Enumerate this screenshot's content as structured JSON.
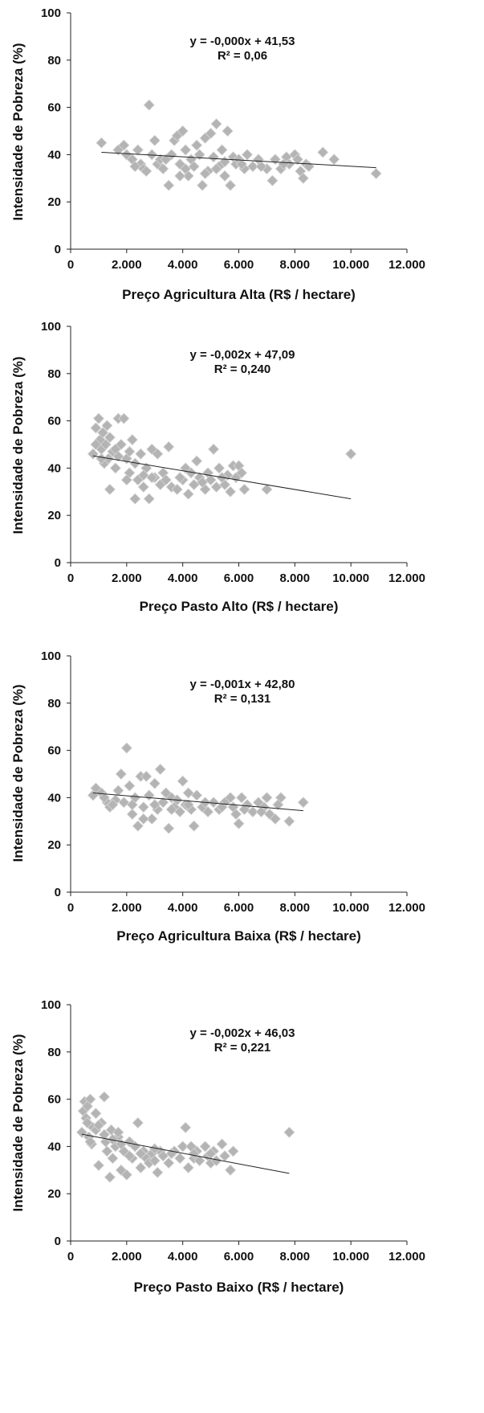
{
  "chart_data": [
    {
      "type": "scatter",
      "title": "",
      "xlabel": "Preço Agricultura Alta (R$ / hectare)",
      "ylabel": "Intensidade de Pobreza (%)",
      "xlim": [
        0,
        12000
      ],
      "ylim": [
        0,
        100
      ],
      "xticks": [
        0,
        2000,
        4000,
        6000,
        8000,
        10000,
        12000
      ],
      "xtick_labels": [
        "0",
        "2.000",
        "4.000",
        "6.000",
        "8.000",
        "10.000",
        "12.000"
      ],
      "yticks": [
        0,
        20,
        40,
        60,
        80,
        100
      ],
      "ytick_labels": [
        "0",
        "20",
        "40",
        "60",
        "80",
        "100"
      ],
      "equation": "y = -0,000x + 41,53",
      "r2": "R² = 0,06",
      "trendline": {
        "x": [
          1100,
          10900
        ],
        "y": [
          41.0,
          34.5
        ]
      },
      "marker_color": "#b4b4b4",
      "points": [
        [
          1100,
          45
        ],
        [
          1700,
          42
        ],
        [
          1900,
          44
        ],
        [
          2000,
          40
        ],
        [
          2200,
          38
        ],
        [
          2400,
          42
        ],
        [
          2500,
          36
        ],
        [
          2600,
          34
        ],
        [
          2800,
          61
        ],
        [
          2900,
          40
        ],
        [
          3000,
          46
        ],
        [
          3100,
          36
        ],
        [
          3200,
          38
        ],
        [
          3300,
          34
        ],
        [
          3500,
          27
        ],
        [
          3600,
          40
        ],
        [
          3700,
          46
        ],
        [
          3800,
          48
        ],
        [
          3900,
          36
        ],
        [
          4000,
          50
        ],
        [
          4100,
          42
        ],
        [
          4200,
          31
        ],
        [
          4300,
          38
        ],
        [
          4400,
          35
        ],
        [
          4500,
          44
        ],
        [
          4600,
          40
        ],
        [
          4700,
          27
        ],
        [
          4800,
          47
        ],
        [
          4900,
          33
        ],
        [
          5000,
          49
        ],
        [
          5100,
          39
        ],
        [
          5200,
          53
        ],
        [
          5300,
          35
        ],
        [
          5400,
          42
        ],
        [
          5500,
          37
        ],
        [
          5600,
          50
        ],
        [
          5700,
          27
        ],
        [
          5800,
          39
        ],
        [
          5900,
          36
        ],
        [
          6000,
          38
        ],
        [
          6200,
          34
        ],
        [
          6300,
          40
        ],
        [
          6500,
          35
        ],
        [
          6700,
          38
        ],
        [
          7000,
          34
        ],
        [
          7200,
          29
        ],
        [
          7300,
          38
        ],
        [
          7500,
          34
        ],
        [
          7700,
          39
        ],
        [
          7800,
          36
        ],
        [
          8000,
          40
        ],
        [
          8200,
          33
        ],
        [
          8300,
          30
        ],
        [
          8400,
          36
        ],
        [
          8500,
          35
        ],
        [
          9000,
          41
        ],
        [
          9400,
          38
        ],
        [
          10900,
          32
        ],
        [
          2300,
          35
        ],
        [
          2700,
          33
        ],
        [
          3400,
          38
        ],
        [
          4100,
          34
        ],
        [
          4800,
          32
        ],
        [
          5200,
          34
        ],
        [
          6100,
          36
        ],
        [
          6800,
          35
        ],
        [
          7600,
          36
        ],
        [
          8100,
          38
        ],
        [
          3900,
          31
        ],
        [
          5500,
          31
        ]
      ]
    },
    {
      "type": "scatter",
      "title": "",
      "xlabel": "Preço Pasto Alto (R$ / hectare)",
      "ylabel": "Intensidade de Pobreza (%)",
      "xlim": [
        0,
        12000
      ],
      "ylim": [
        0,
        100
      ],
      "xticks": [
        0,
        2000,
        4000,
        6000,
        8000,
        10000,
        12000
      ],
      "xtick_labels": [
        "0",
        "2.000",
        "4.000",
        "6.000",
        "8.000",
        "10.000",
        "12.000"
      ],
      "yticks": [
        0,
        20,
        40,
        60,
        80,
        100
      ],
      "ytick_labels": [
        "0",
        "20",
        "40",
        "60",
        "80",
        "100"
      ],
      "equation": "y = -0,002x + 47,09",
      "r2": "R² = 0,240",
      "trendline": {
        "x": [
          800,
          10000
        ],
        "y": [
          45.2,
          27.0
        ]
      },
      "marker_color": "#b4b4b4",
      "points": [
        [
          800,
          46
        ],
        [
          900,
          57
        ],
        [
          1000,
          61
        ],
        [
          1050,
          52
        ],
        [
          1100,
          48
        ],
        [
          1150,
          55
        ],
        [
          1200,
          42
        ],
        [
          1250,
          50
        ],
        [
          1300,
          58
        ],
        [
          1350,
          44
        ],
        [
          1400,
          31
        ],
        [
          1500,
          47
        ],
        [
          1600,
          40
        ],
        [
          1700,
          61
        ],
        [
          1800,
          50
        ],
        [
          1900,
          61
        ],
        [
          2000,
          44
        ],
        [
          2100,
          38
        ],
        [
          2200,
          52
        ],
        [
          2300,
          27
        ],
        [
          2400,
          35
        ],
        [
          2500,
          46
        ],
        [
          2600,
          32
        ],
        [
          2700,
          40
        ],
        [
          2800,
          27
        ],
        [
          2900,
          48
        ],
        [
          3000,
          36
        ],
        [
          3100,
          46
        ],
        [
          3200,
          33
        ],
        [
          3300,
          38
        ],
        [
          3500,
          49
        ],
        [
          3600,
          32
        ],
        [
          3800,
          31
        ],
        [
          4000,
          35
        ],
        [
          4100,
          40
        ],
        [
          4200,
          29
        ],
        [
          4300,
          38
        ],
        [
          4400,
          33
        ],
        [
          4500,
          43
        ],
        [
          4600,
          36
        ],
        [
          4800,
          31
        ],
        [
          4900,
          38
        ],
        [
          5000,
          35
        ],
        [
          5100,
          48
        ],
        [
          5200,
          32
        ],
        [
          5300,
          40
        ],
        [
          5500,
          33
        ],
        [
          5600,
          37
        ],
        [
          5700,
          30
        ],
        [
          5800,
          41
        ],
        [
          5900,
          36
        ],
        [
          6000,
          41
        ],
        [
          6100,
          38
        ],
        [
          6200,
          31
        ],
        [
          7000,
          31
        ],
        [
          10000,
          46
        ],
        [
          1100,
          44
        ],
        [
          1400,
          53
        ],
        [
          1700,
          45
        ],
        [
          2000,
          35
        ],
        [
          2300,
          42
        ],
        [
          2600,
          37
        ],
        [
          2900,
          36
        ],
        [
          3400,
          35
        ],
        [
          3900,
          36
        ],
        [
          4700,
          34
        ],
        [
          5400,
          36
        ],
        [
          900,
          50
        ],
        [
          1600,
          48
        ],
        [
          2100,
          47
        ]
      ]
    },
    {
      "type": "scatter",
      "title": "",
      "xlabel": "Preço Agricultura Baixa (R$ / hectare)",
      "ylabel": "Intensidade de Pobreza (%)",
      "xlim": [
        0,
        12000
      ],
      "ylim": [
        0,
        100
      ],
      "xticks": [
        0,
        2000,
        4000,
        6000,
        8000,
        10000,
        12000
      ],
      "xtick_labels": [
        "0",
        "2.000",
        "4.000",
        "6.000",
        "8.000",
        "10.000",
        "12.000"
      ],
      "yticks": [
        0,
        20,
        40,
        60,
        80,
        100
      ],
      "ytick_labels": [
        "0",
        "20",
        "40",
        "60",
        "80",
        "100"
      ],
      "equation": "y = -0,001x + 42,80",
      "r2": "R² = 0,131",
      "trendline": {
        "x": [
          800,
          8300
        ],
        "y": [
          42.0,
          34.5
        ]
      },
      "marker_color": "#b4b4b4",
      "points": [
        [
          800,
          41
        ],
        [
          900,
          44
        ],
        [
          1100,
          42
        ],
        [
          1300,
          38
        ],
        [
          1400,
          36
        ],
        [
          1600,
          39
        ],
        [
          1700,
          43
        ],
        [
          1800,
          50
        ],
        [
          1900,
          38
        ],
        [
          2000,
          61
        ],
        [
          2100,
          45
        ],
        [
          2200,
          33
        ],
        [
          2300,
          40
        ],
        [
          2400,
          28
        ],
        [
          2500,
          49
        ],
        [
          2600,
          36
        ],
        [
          2700,
          49
        ],
        [
          2800,
          41
        ],
        [
          2900,
          31
        ],
        [
          3000,
          46
        ],
        [
          3100,
          35
        ],
        [
          3200,
          52
        ],
        [
          3300,
          38
        ],
        [
          3400,
          42
        ],
        [
          3500,
          27
        ],
        [
          3600,
          40
        ],
        [
          3700,
          36
        ],
        [
          3800,
          39
        ],
        [
          3900,
          34
        ],
        [
          4000,
          47
        ],
        [
          4100,
          37
        ],
        [
          4200,
          42
        ],
        [
          4300,
          35
        ],
        [
          4400,
          28
        ],
        [
          4500,
          41
        ],
        [
          4700,
          36
        ],
        [
          4900,
          34
        ],
        [
          5100,
          38
        ],
        [
          5300,
          35
        ],
        [
          5500,
          38
        ],
        [
          5700,
          40
        ],
        [
          5800,
          36
        ],
        [
          5900,
          33
        ],
        [
          6000,
          29
        ],
        [
          6100,
          40
        ],
        [
          6300,
          37
        ],
        [
          6500,
          34
        ],
        [
          6700,
          38
        ],
        [
          6900,
          36
        ],
        [
          7000,
          40
        ],
        [
          7100,
          33
        ],
        [
          7300,
          31
        ],
        [
          7500,
          40
        ],
        [
          7800,
          30
        ],
        [
          8300,
          38
        ],
        [
          1500,
          37
        ],
        [
          2200,
          37
        ],
        [
          2600,
          31
        ],
        [
          3000,
          37
        ],
        [
          3600,
          35
        ],
        [
          4200,
          37
        ],
        [
          4800,
          38
        ],
        [
          5400,
          36
        ],
        [
          6200,
          35
        ],
        [
          6800,
          34
        ],
        [
          7400,
          37
        ],
        [
          1200,
          40
        ]
      ]
    },
    {
      "type": "scatter",
      "title": "",
      "xlabel": "Preço Pasto Baixo (R$ / hectare)",
      "ylabel": "Intensidade de Pobreza (%)",
      "xlim": [
        0,
        12000
      ],
      "ylim": [
        0,
        100
      ],
      "xticks": [
        0,
        2000,
        4000,
        6000,
        8000,
        10000,
        12000
      ],
      "xtick_labels": [
        "0",
        "2.000",
        "4.000",
        "6.000",
        "8.000",
        "10.000",
        "12.000"
      ],
      "yticks": [
        0,
        20,
        40,
        60,
        80,
        100
      ],
      "ytick_labels": [
        "0",
        "20",
        "40",
        "60",
        "80",
        "100"
      ],
      "equation": "y = -0,002x + 46,03",
      "r2": "R² = 0,221",
      "trendline": {
        "x": [
          400,
          7800
        ],
        "y": [
          45.2,
          28.6
        ]
      },
      "marker_color": "#b4b4b4",
      "points": [
        [
          400,
          46
        ],
        [
          450,
          55
        ],
        [
          500,
          59
        ],
        [
          550,
          52
        ],
        [
          600,
          50
        ],
        [
          650,
          44
        ],
        [
          700,
          60
        ],
        [
          750,
          41
        ],
        [
          800,
          48
        ],
        [
          900,
          54
        ],
        [
          1000,
          32
        ],
        [
          1100,
          50
        ],
        [
          1200,
          61
        ],
        [
          1250,
          42
        ],
        [
          1300,
          38
        ],
        [
          1400,
          27
        ],
        [
          1450,
          47
        ],
        [
          1500,
          35
        ],
        [
          1600,
          40
        ],
        [
          1700,
          44
        ],
        [
          1800,
          30
        ],
        [
          1900,
          38
        ],
        [
          2000,
          28
        ],
        [
          2100,
          42
        ],
        [
          2200,
          35
        ],
        [
          2300,
          40
        ],
        [
          2400,
          50
        ],
        [
          2500,
          31
        ],
        [
          2600,
          38
        ],
        [
          2700,
          35
        ],
        [
          2800,
          33
        ],
        [
          2900,
          37
        ],
        [
          3000,
          34
        ],
        [
          3100,
          29
        ],
        [
          3200,
          38
        ],
        [
          3300,
          36
        ],
        [
          3500,
          33
        ],
        [
          3700,
          38
        ],
        [
          3900,
          35
        ],
        [
          4000,
          40
        ],
        [
          4100,
          48
        ],
        [
          4200,
          31
        ],
        [
          4300,
          40
        ],
        [
          4400,
          35
        ],
        [
          4500,
          38
        ],
        [
          4600,
          34
        ],
        [
          4800,
          40
        ],
        [
          4900,
          36
        ],
        [
          5000,
          33
        ],
        [
          5100,
          38
        ],
        [
          5200,
          34
        ],
        [
          5400,
          41
        ],
        [
          5500,
          36
        ],
        [
          5700,
          30
        ],
        [
          5800,
          38
        ],
        [
          7800,
          46
        ],
        [
          600,
          57
        ],
        [
          900,
          47
        ],
        [
          1200,
          45
        ],
        [
          1500,
          43
        ],
        [
          1800,
          41
        ],
        [
          2100,
          36
        ],
        [
          2500,
          37
        ],
        [
          3000,
          39
        ],
        [
          3600,
          37
        ],
        [
          4400,
          37
        ],
        [
          5000,
          37
        ],
        [
          700,
          42
        ],
        [
          1000,
          49
        ],
        [
          1700,
          46
        ]
      ]
    }
  ]
}
